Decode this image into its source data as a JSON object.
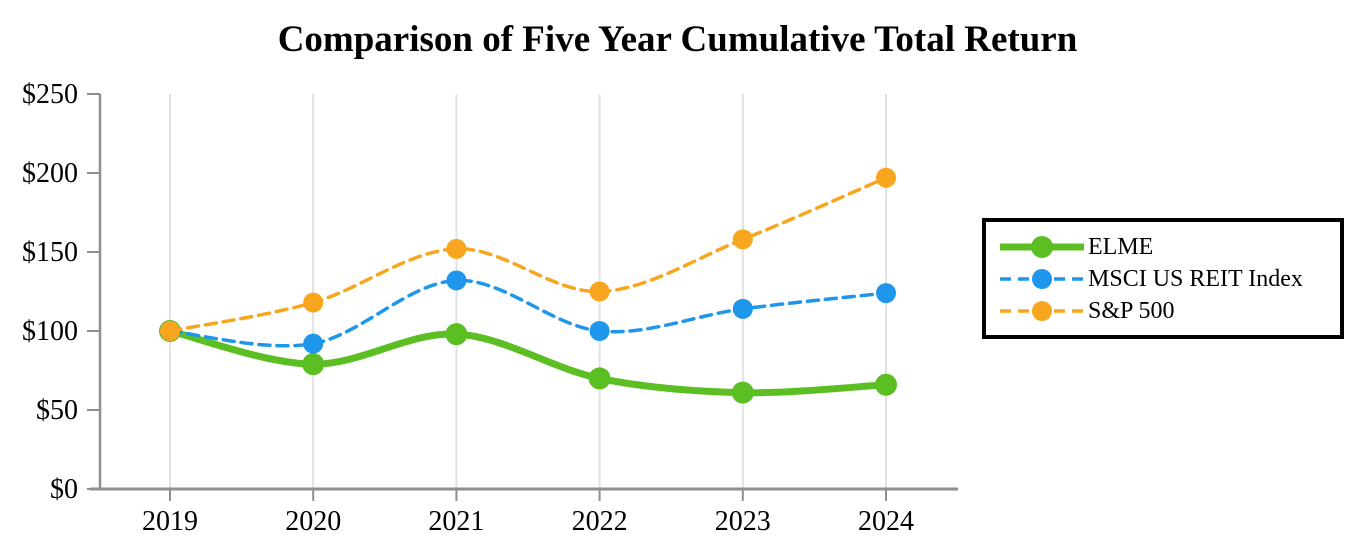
{
  "title": "Comparison of Five Year Cumulative Total Return",
  "chart_data": {
    "type": "line",
    "x": [
      "2019",
      "2020",
      "2021",
      "2022",
      "2023",
      "2024"
    ],
    "series": [
      {
        "name": "ELME",
        "values": [
          100,
          79,
          98,
          70,
          61,
          66
        ],
        "color": "#5BBE23",
        "line_style": "solid",
        "line_width": 7,
        "marker": "circle",
        "marker_radius": 11
      },
      {
        "name": "MSCI US REIT Index",
        "values": [
          100,
          92,
          132,
          100,
          114,
          124
        ],
        "color": "#1E96EB",
        "line_style": "dashed",
        "line_width": 3.5,
        "marker": "circle",
        "marker_radius": 10
      },
      {
        "name": "S&P 500",
        "values": [
          100,
          118,
          152,
          125,
          158,
          197
        ],
        "color": "#F7A61E",
        "line_style": "dashed",
        "line_width": 3.5,
        "marker": "circle",
        "marker_radius": 10
      }
    ],
    "title": "Comparison of Five Year Cumulative Total Return",
    "xlabel": "",
    "ylabel": "",
    "ylim": [
      0,
      250
    ],
    "y_ticks": [
      "$0",
      "$50",
      "$100",
      "$150",
      "$200",
      "$250"
    ],
    "y_tick_values": [
      0,
      50,
      100,
      150,
      200,
      250
    ],
    "grid": "vertical-only",
    "smooth_lines": true,
    "legend_position": "right",
    "legend_border_color": "#000000",
    "axis_color": "#8F8F8F",
    "gridline_color": "#E2E2E2",
    "text_color": "#000000"
  }
}
